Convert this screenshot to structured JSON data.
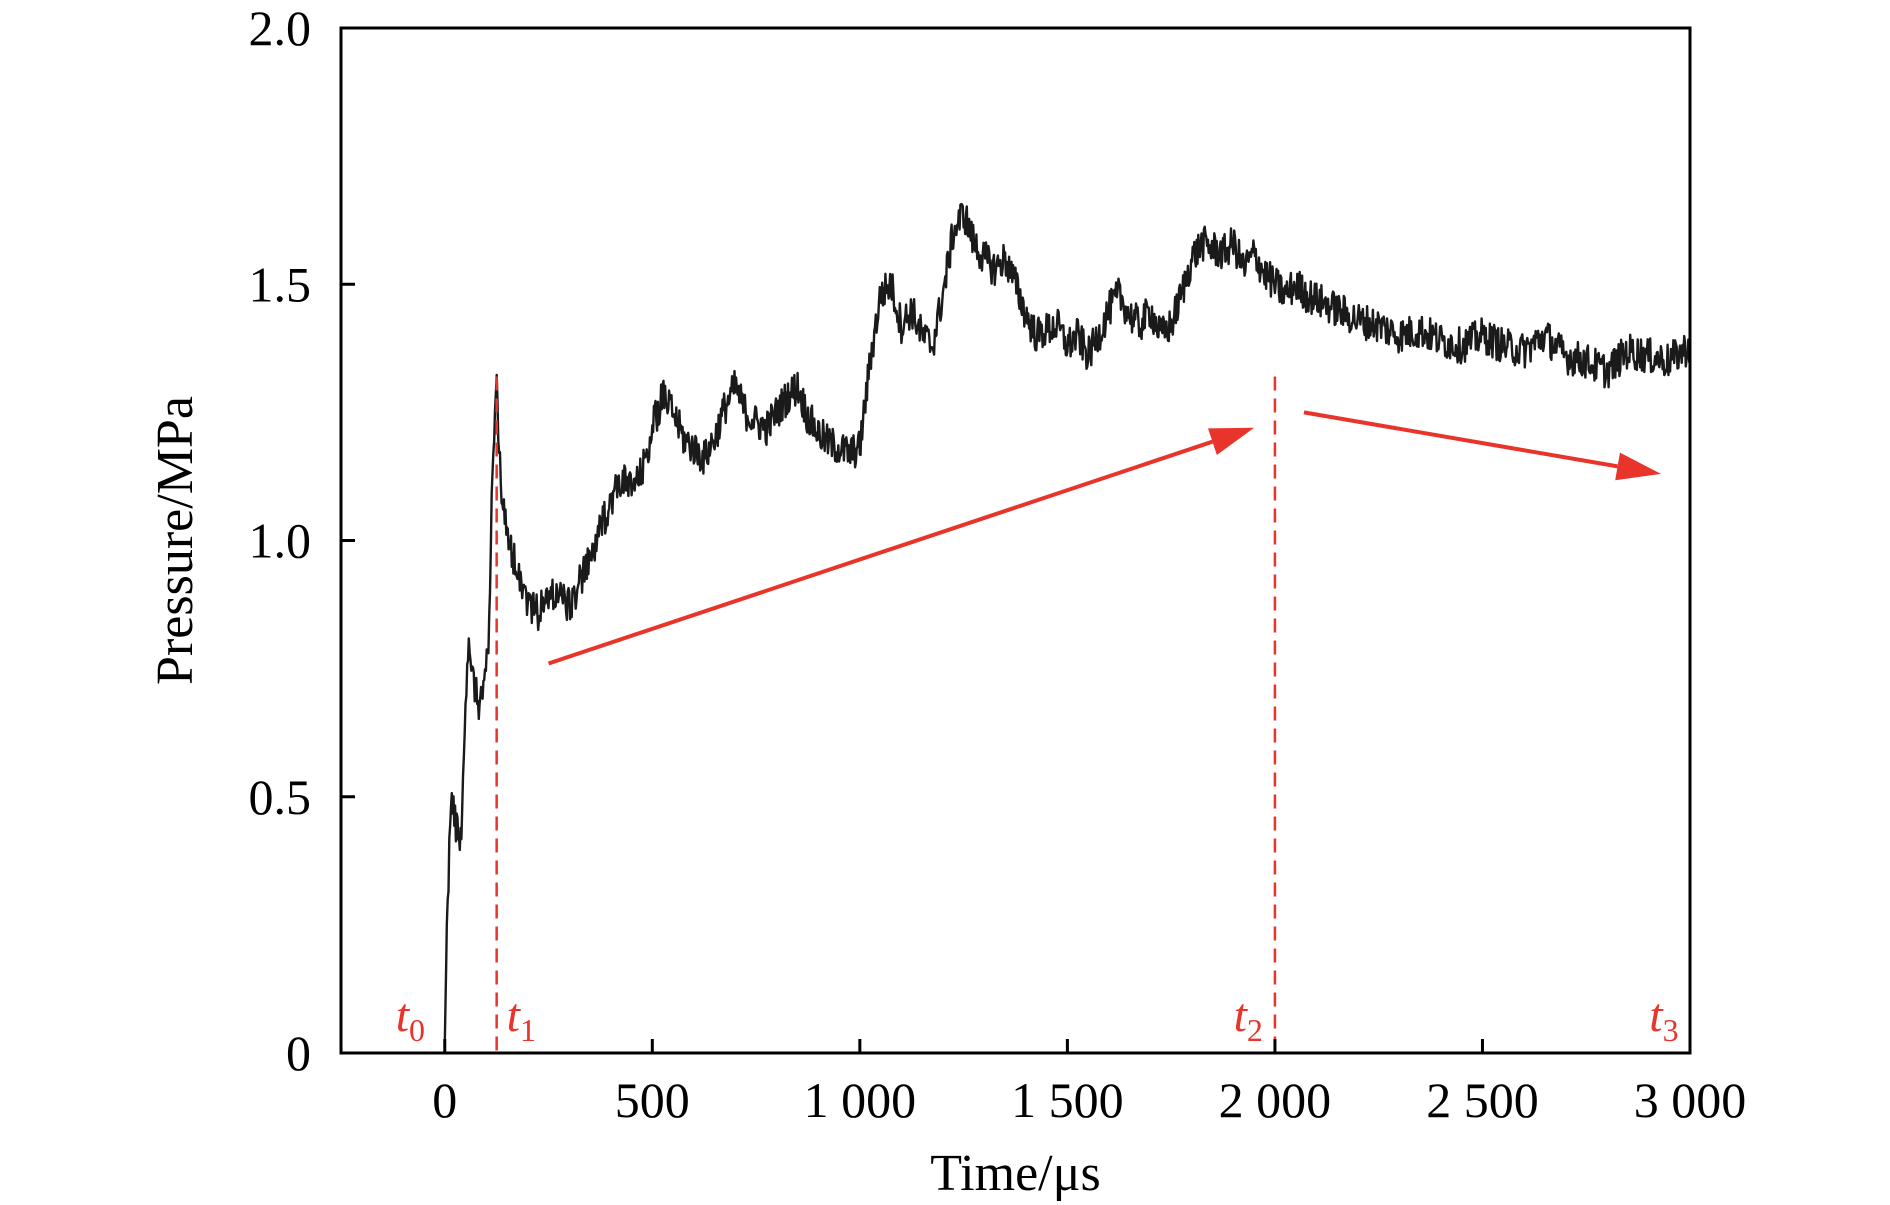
{
  "chart_data": {
    "type": "line",
    "xlabel": "Time/μs",
    "ylabel": "Pressure/MPa",
    "xlim": [
      -250,
      3000
    ],
    "ylim": [
      0,
      2.0
    ],
    "x_ticks": [
      0,
      500,
      1000,
      1500,
      2000,
      2500,
      3000
    ],
    "x_tick_labels": [
      "0",
      "500",
      "1 000",
      "1 500",
      "2 000",
      "2 500",
      "3 000"
    ],
    "y_ticks": [
      0,
      0.5,
      1.0,
      1.5,
      2.0
    ],
    "y_tick_labels": [
      "0",
      "0.5",
      "1.0",
      "1.5",
      "2.0"
    ],
    "grid": false,
    "series": [
      {
        "color": "#1a1a1a",
        "x": [
          0,
          5,
          15,
          25,
          40,
          50,
          60,
          70,
          80,
          95,
          105,
          115,
          125,
          135,
          150,
          175,
          200,
          225,
          250,
          275,
          300,
          325,
          350,
          375,
          400,
          425,
          450,
          475,
          500,
          525,
          550,
          575,
          600,
          625,
          650,
          675,
          700,
          725,
          750,
          775,
          800,
          825,
          850,
          875,
          900,
          925,
          950,
          975,
          1000,
          1025,
          1050,
          1075,
          1100,
          1125,
          1150,
          1175,
          1200,
          1225,
          1250,
          1275,
          1300,
          1325,
          1350,
          1375,
          1400,
          1425,
          1450,
          1475,
          1500,
          1525,
          1550,
          1575,
          1600,
          1625,
          1650,
          1675,
          1700,
          1725,
          1750,
          1775,
          1800,
          1825,
          1850,
          1875,
          1900,
          1925,
          1950,
          1975,
          2000,
          2025,
          2050,
          2075,
          2100,
          2150,
          2200,
          2250,
          2300,
          2350,
          2400,
          2450,
          2500,
          2550,
          2600,
          2650,
          2700,
          2750,
          2800,
          2850,
          2900,
          2950,
          3000
        ],
        "y": [
          0.02,
          0.25,
          0.5,
          0.45,
          0.42,
          0.7,
          0.8,
          0.73,
          0.68,
          0.72,
          0.78,
          1.15,
          1.3,
          1.12,
          1.0,
          0.95,
          0.88,
          0.86,
          0.89,
          0.9,
          0.87,
          0.92,
          0.96,
          1.02,
          1.08,
          1.12,
          1.1,
          1.13,
          1.22,
          1.28,
          1.25,
          1.2,
          1.18,
          1.16,
          1.2,
          1.26,
          1.3,
          1.25,
          1.23,
          1.22,
          1.25,
          1.28,
          1.3,
          1.24,
          1.21,
          1.19,
          1.18,
          1.17,
          1.18,
          1.35,
          1.48,
          1.5,
          1.42,
          1.45,
          1.4,
          1.38,
          1.48,
          1.6,
          1.64,
          1.58,
          1.55,
          1.53,
          1.55,
          1.5,
          1.44,
          1.4,
          1.41,
          1.42,
          1.38,
          1.4,
          1.36,
          1.4,
          1.45,
          1.48,
          1.44,
          1.42,
          1.45,
          1.4,
          1.42,
          1.48,
          1.55,
          1.58,
          1.57,
          1.56,
          1.58,
          1.53,
          1.56,
          1.52,
          1.5,
          1.48,
          1.5,
          1.48,
          1.47,
          1.45,
          1.43,
          1.42,
          1.4,
          1.41,
          1.39,
          1.38,
          1.4,
          1.38,
          1.37,
          1.4,
          1.36,
          1.35,
          1.33,
          1.37,
          1.36,
          1.35,
          1.38
        ]
      }
    ],
    "annotations": {
      "markers": [
        {
          "base": "t",
          "sub": "0",
          "x": -70,
          "line": false
        },
        {
          "base": "t",
          "sub": "1",
          "x": 125,
          "line": true
        },
        {
          "base": "t",
          "sub": "2",
          "x": 2000,
          "line": true
        },
        {
          "base": "t",
          "sub": "3",
          "x": 2950,
          "line": false
        }
      ],
      "arrows": [
        {
          "from": [
            250,
            0.76
          ],
          "to": [
            1950,
            1.22
          ]
        },
        {
          "from": [
            2070,
            1.25
          ],
          "to": [
            2930,
            1.13
          ]
        }
      ],
      "color": "#e8342a"
    }
  }
}
